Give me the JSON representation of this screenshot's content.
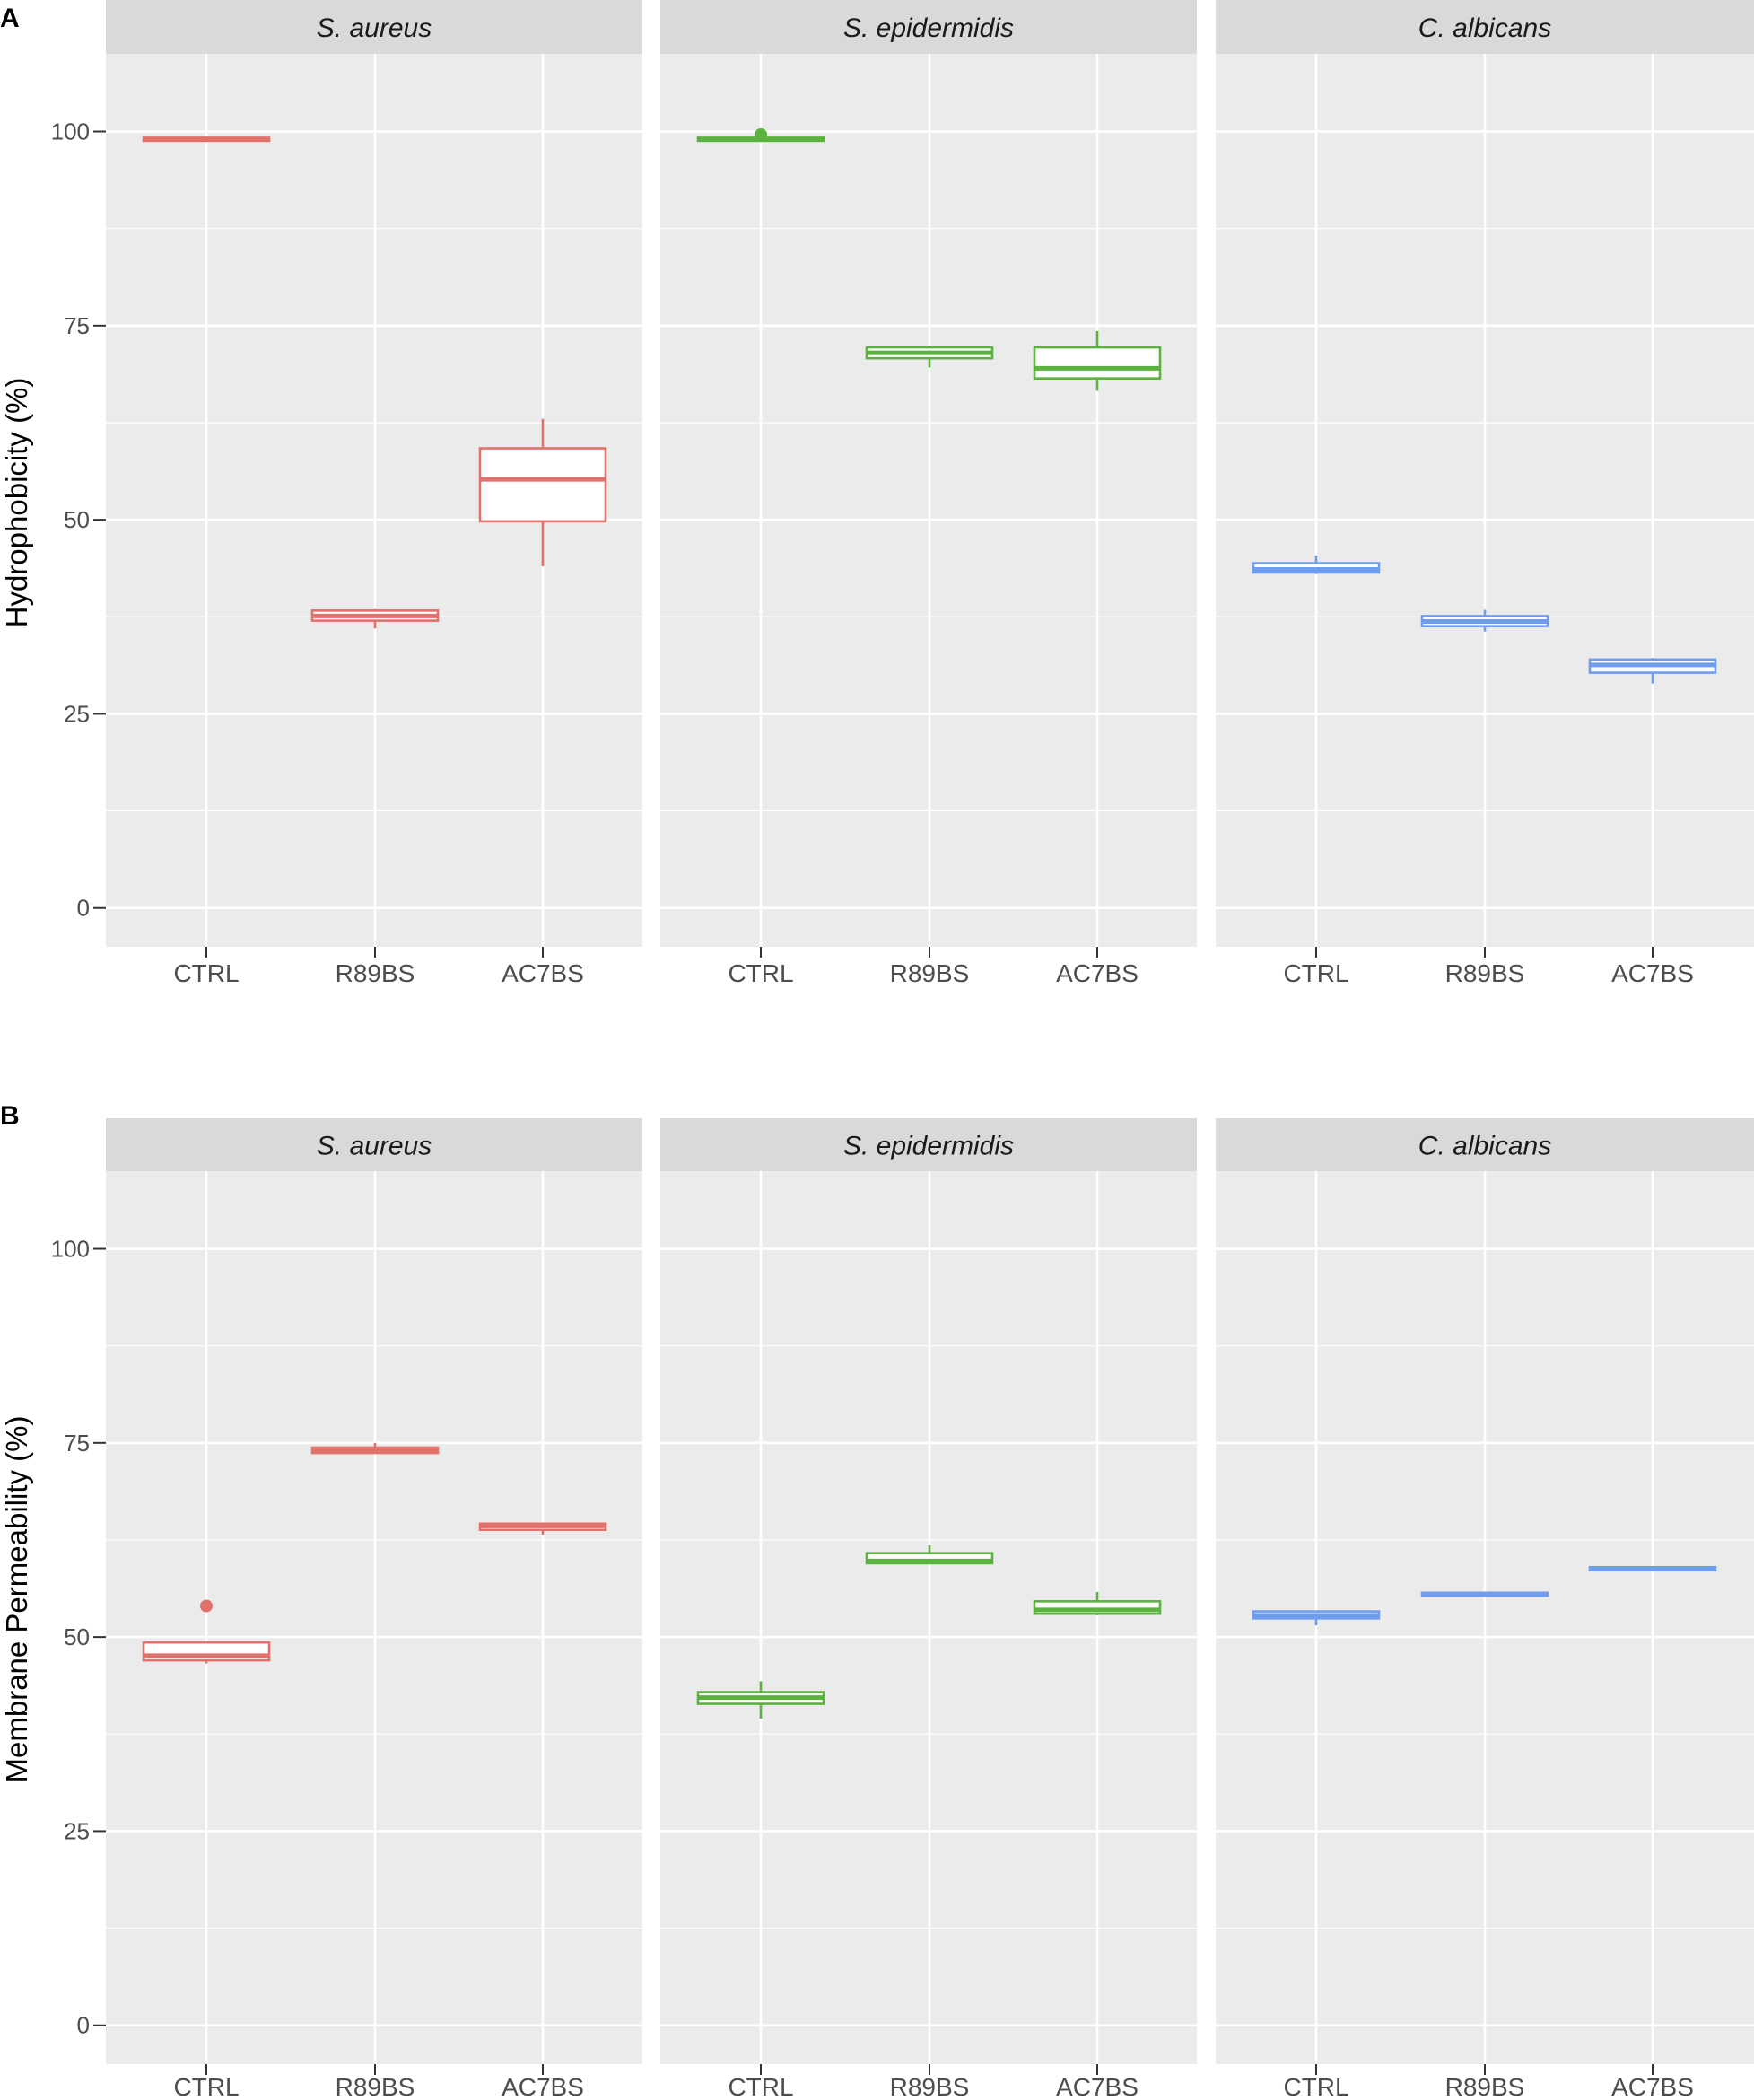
{
  "figure": {
    "colors": {
      "S. aureus": "#e0716b",
      "S. epidermidis": "#5bb23f",
      "C. albicans": "#6e9df0",
      "panel_bg": "#ebebeb",
      "strip_bg": "#d9d9d9",
      "grid": "#ffffff"
    }
  },
  "chart_data": [
    {
      "panel_label": "A",
      "type": "boxplot",
      "ylabel": "Hydrophobicity (%)",
      "xlabel": "",
      "ylim": [
        -5,
        110
      ],
      "yticks": [
        0,
        25,
        50,
        75,
        100
      ],
      "grid": true,
      "facets": [
        {
          "strip": "S. aureus",
          "groups": [
            {
              "category": "CTRL",
              "q1": 98.8,
              "median": 99.0,
              "q3": 99.2,
              "whisker_low": 98.8,
              "whisker_high": 99.2,
              "outliers": []
            },
            {
              "category": "R89BS",
              "q1": 37.0,
              "median": 37.6,
              "q3": 38.3,
              "whisker_low": 36.0,
              "whisker_high": 38.5,
              "outliers": []
            },
            {
              "category": "AC7BS",
              "q1": 49.8,
              "median": 55.2,
              "q3": 59.2,
              "whisker_low": 44.0,
              "whisker_high": 63.0,
              "outliers": []
            }
          ]
        },
        {
          "strip": "S. epidermidis",
          "groups": [
            {
              "category": "CTRL",
              "q1": 98.8,
              "median": 99.0,
              "q3": 99.2,
              "whisker_low": 98.8,
              "whisker_high": 99.3,
              "outliers": [
                99.6
              ]
            },
            {
              "category": "R89BS",
              "q1": 70.8,
              "median": 71.5,
              "q3": 72.2,
              "whisker_low": 69.6,
              "whisker_high": 72.4,
              "outliers": []
            },
            {
              "category": "AC7BS",
              "q1": 68.2,
              "median": 69.5,
              "q3": 72.2,
              "whisker_low": 66.6,
              "whisker_high": 74.3,
              "outliers": []
            }
          ]
        },
        {
          "strip": "C. albicans",
          "groups": [
            {
              "category": "CTRL",
              "q1": 43.2,
              "median": 43.6,
              "q3": 44.4,
              "whisker_low": 43.0,
              "whisker_high": 45.4,
              "outliers": []
            },
            {
              "category": "R89BS",
              "q1": 36.3,
              "median": 36.9,
              "q3": 37.6,
              "whisker_low": 35.6,
              "whisker_high": 38.4,
              "outliers": []
            },
            {
              "category": "AC7BS",
              "q1": 30.3,
              "median": 31.3,
              "q3": 32.0,
              "whisker_low": 28.9,
              "whisker_high": 32.2,
              "outliers": []
            }
          ]
        }
      ]
    },
    {
      "panel_label": "B",
      "type": "boxplot",
      "ylabel": "Membrane Permeability (%)",
      "xlabel": "",
      "ylim": [
        -5,
        110
      ],
      "yticks": [
        0,
        25,
        50,
        75,
        100
      ],
      "grid": true,
      "facets": [
        {
          "strip": "S. aureus",
          "groups": [
            {
              "category": "CTRL",
              "q1": 47.0,
              "median": 47.6,
              "q3": 49.3,
              "whisker_low": 46.6,
              "whisker_high": 49.4,
              "outliers": [
                54.0
              ]
            },
            {
              "category": "R89BS",
              "q1": 73.7,
              "median": 74.0,
              "q3": 74.4,
              "whisker_low": 73.6,
              "whisker_high": 75.0,
              "outliers": []
            },
            {
              "category": "AC7BS",
              "q1": 63.8,
              "median": 64.3,
              "q3": 64.6,
              "whisker_low": 63.2,
              "whisker_high": 64.7,
              "outliers": []
            }
          ]
        },
        {
          "strip": "S. epidermidis",
          "groups": [
            {
              "category": "CTRL",
              "q1": 41.4,
              "median": 42.2,
              "q3": 42.9,
              "whisker_low": 39.5,
              "whisker_high": 44.3,
              "outliers": []
            },
            {
              "category": "R89BS",
              "q1": 59.5,
              "median": 59.8,
              "q3": 60.8,
              "whisker_low": 59.4,
              "whisker_high": 61.8,
              "outliers": []
            },
            {
              "category": "AC7BS",
              "q1": 53.0,
              "median": 53.5,
              "q3": 54.6,
              "whisker_low": 52.8,
              "whisker_high": 55.8,
              "outliers": []
            }
          ]
        },
        {
          "strip": "C. albicans",
          "groups": [
            {
              "category": "CTRL",
              "q1": 52.4,
              "median": 52.8,
              "q3": 53.3,
              "whisker_low": 51.5,
              "whisker_high": 53.4,
              "outliers": []
            },
            {
              "category": "R89BS",
              "q1": 55.3,
              "median": 55.5,
              "q3": 55.7,
              "whisker_low": 55.2,
              "whisker_high": 55.8,
              "outliers": []
            },
            {
              "category": "AC7BS",
              "q1": 58.6,
              "median": 58.8,
              "q3": 59.0,
              "whisker_low": 58.5,
              "whisker_high": 59.1,
              "outliers": []
            }
          ]
        }
      ]
    }
  ]
}
